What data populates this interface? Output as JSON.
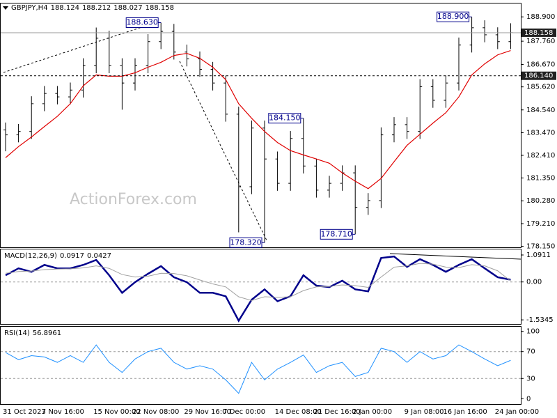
{
  "chart_data": [
    {
      "type": "ohlc",
      "title": "GBPJPY,H4",
      "header_values": [
        188.124,
        188.212,
        188.027,
        188.158
      ],
      "color": "#000000",
      "categories": [
        "31 Oct 2023",
        null,
        null,
        "7 Nov 16:00",
        null,
        null,
        null,
        "15 Nov 00:00",
        null,
        null,
        "22 Nov 08:00",
        null,
        null,
        null,
        "29 Nov 16:00",
        null,
        null,
        "7 Dec 00:00",
        null,
        null,
        null,
        "14 Dec 08:00",
        null,
        null,
        "21 Dec 16:00",
        null,
        null,
        "2 Jan 00:00",
        null,
        null,
        null,
        "9 Jan 08:00",
        null,
        null,
        "16 Jan 16:00",
        null,
        null,
        null,
        "24 Jan 00:00",
        null
      ],
      "open": [
        183.6,
        183.37,
        183.53,
        184.83,
        185.31,
        185.15,
        185.47,
        186.61,
        187.9,
        186.61,
        185.8,
        186.61,
        187.74,
        188.22,
        187.25,
        186.93,
        186.44,
        185.8,
        184.34,
        180.94,
        183.69,
        182.24,
        181.1,
        183.2,
        181.91,
        180.78,
        181.1,
        181.59,
        179.97,
        180.29,
        183.37,
        183.85,
        183.53,
        185.63,
        184.99,
        185.8,
        187.58,
        188.39,
        188.06,
        187.74
      ],
      "high": [
        183.95,
        183.88,
        185.18,
        185.66,
        185.66,
        185.82,
        186.96,
        188.4,
        188.25,
        186.96,
        186.96,
        188.09,
        188.63,
        188.57,
        187.6,
        187.28,
        186.79,
        186.15,
        184.69,
        184.04,
        184.04,
        182.59,
        183.55,
        184.15,
        182.26,
        181.45,
        181.94,
        181.94,
        180.64,
        183.72,
        184.2,
        184.2,
        185.98,
        185.98,
        186.15,
        187.93,
        188.9,
        188.74,
        188.41,
        188.6
      ],
      "low": [
        182.6,
        183.02,
        183.18,
        184.48,
        184.8,
        184.8,
        185.12,
        186.26,
        186.26,
        184.55,
        185.45,
        186.26,
        187.39,
        186.9,
        186.58,
        186.09,
        185.45,
        183.99,
        178.8,
        180.59,
        178.32,
        180.75,
        180.75,
        181.56,
        180.43,
        180.43,
        180.75,
        178.71,
        179.62,
        179.94,
        183.02,
        183.18,
        183.18,
        184.64,
        184.64,
        185.45,
        187.23,
        187.71,
        187.39,
        187.39
      ],
      "close": [
        183.37,
        183.53,
        184.83,
        185.31,
        185.15,
        185.47,
        186.61,
        187.9,
        186.61,
        185.8,
        186.61,
        187.74,
        188.22,
        187.25,
        186.93,
        186.44,
        185.8,
        184.34,
        180.94,
        183.69,
        182.24,
        181.1,
        183.2,
        181.91,
        180.78,
        181.1,
        181.59,
        179.97,
        180.29,
        183.37,
        183.85,
        183.53,
        185.63,
        184.99,
        185.8,
        187.58,
        188.39,
        188.06,
        187.74,
        188.16
      ],
      "ma": {
        "color": "#e00000",
        "values": [
          182.3,
          182.82,
          183.27,
          183.76,
          184.24,
          184.83,
          185.67,
          186.18,
          186.12,
          186.12,
          186.28,
          186.54,
          186.77,
          187.09,
          187.19,
          186.96,
          186.54,
          185.96,
          184.83,
          184.15,
          183.53,
          183.01,
          182.63,
          182.43,
          182.24,
          182.04,
          181.59,
          181.2,
          180.85,
          181.33,
          182.11,
          182.88,
          183.4,
          183.92,
          184.41,
          185.15,
          186.18,
          186.7,
          187.12,
          187.32
        ]
      },
      "ylim": [
        178.1,
        189.56
      ],
      "yticks": [
        {
          "value": 188.9,
          "label": "188.900"
        },
        {
          "value": 187.76,
          "label": "187.760"
        },
        {
          "value": 186.67,
          "label": "186.670"
        },
        {
          "value": 185.62,
          "label": "185.620"
        },
        {
          "value": 184.54,
          "label": "184.540"
        },
        {
          "value": 183.47,
          "label": "183.470"
        },
        {
          "value": 182.41,
          "label": "182.410"
        },
        {
          "value": 181.35,
          "label": "181.350"
        },
        {
          "value": 180.28,
          "label": "180.280"
        },
        {
          "value": 179.21,
          "label": "179.210"
        },
        {
          "value": 178.15,
          "label": "178.150"
        }
      ],
      "price_lines": [
        {
          "value": 188.158,
          "style": "solid"
        },
        {
          "value": 186.14,
          "label": "186.140",
          "style": "dashed"
        }
      ],
      "annotations": [
        {
          "value": 188.63,
          "label": "188.630"
        },
        {
          "value": 184.15,
          "label": "184.150"
        },
        {
          "value": 178.32,
          "label": "178.320"
        },
        {
          "value": 178.71,
          "label": "178.710"
        },
        {
          "value": 188.9,
          "label": "188.900"
        }
      ],
      "watermark": "ActionForex.com"
    },
    {
      "type": "line",
      "title": "MACD(12,26,9)",
      "header_values": [
        0.0917,
        0.0427
      ],
      "series": [
        {
          "color": "#00008b",
          "values": [
            0.27,
            0.55,
            0.41,
            0.69,
            0.55,
            0.55,
            0.69,
            0.89,
            0.27,
            -0.44,
            -0.01,
            0.33,
            0.64,
            0.19,
            -0.01,
            -0.44,
            -0.44,
            -0.58,
            -1.57,
            -0.72,
            -0.3,
            -0.78,
            -0.58,
            0.27,
            -0.15,
            -0.21,
            0.05,
            -0.3,
            -0.38,
            0.97,
            1.03,
            0.61,
            0.92,
            0.69,
            0.41,
            0.69,
            0.92,
            0.55,
            0.19,
            0.09
          ]
        },
        {
          "color": "#a0a0a0",
          "values": [
            0.35,
            0.42,
            0.44,
            0.5,
            0.52,
            0.53,
            0.57,
            0.65,
            0.55,
            0.3,
            0.2,
            0.23,
            0.35,
            0.34,
            0.25,
            0.08,
            -0.08,
            -0.2,
            -0.6,
            -0.75,
            -0.6,
            -0.62,
            -0.6,
            -0.35,
            -0.2,
            -0.18,
            -0.12,
            -0.15,
            -0.22,
            0.2,
            0.6,
            0.65,
            0.75,
            0.72,
            0.6,
            0.58,
            0.7,
            0.65,
            0.45,
            0.04
          ]
        }
      ],
      "ylim": [
        -1.7,
        1.345
      ],
      "yticks": [
        1.0911,
        {
          "value": 0,
          "label": "0.00"
        },
        -1.5345
      ]
    },
    {
      "type": "line",
      "title": "RSI(14)",
      "header_values": [
        56.8961
      ],
      "series": [
        {
          "color": "#1e90ff",
          "values": [
            68.75,
            58,
            64,
            62,
            54,
            64,
            54,
            80,
            54,
            39,
            59,
            70,
            75,
            54,
            44,
            49,
            44,
            28,
            8,
            54,
            28,
            44,
            54,
            65,
            39,
            49,
            54,
            33,
            39,
            75,
            70,
            54,
            70,
            59,
            64,
            80,
            70,
            59,
            49,
            57
          ]
        }
      ],
      "ylim": [
        -8,
        108
      ],
      "yticks": [
        100,
        70,
        30,
        0
      ]
    }
  ]
}
